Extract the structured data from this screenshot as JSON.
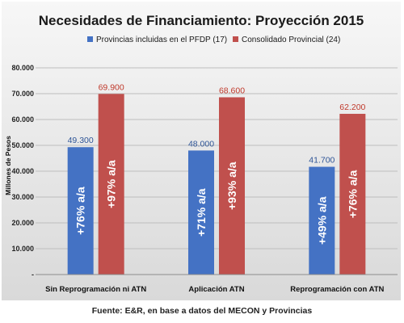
{
  "chart_data": {
    "type": "bar",
    "title": "Necesidades de Financiamiento: Proyección 2015",
    "ylabel": "Millones de Pesos",
    "xlabel": "",
    "ylim": [
      0,
      80000
    ],
    "y_ticks": [
      {
        "value": 0,
        "label": "-"
      },
      {
        "value": 10000,
        "label": "10.000"
      },
      {
        "value": 20000,
        "label": "20.000"
      },
      {
        "value": 30000,
        "label": "30.000"
      },
      {
        "value": 40000,
        "label": "40.000"
      },
      {
        "value": 50000,
        "label": "50.000"
      },
      {
        "value": 60000,
        "label": "60.000"
      },
      {
        "value": 70000,
        "label": "70.000"
      },
      {
        "value": 80000,
        "label": "80.000"
      }
    ],
    "grid": true,
    "legend_position": "top",
    "categories": [
      "Sin Reprogramación ni ATN",
      "Aplicación ATN",
      "Reprogramación con ATN"
    ],
    "series": [
      {
        "name": "Provincias incluidas en el PFDP (17)",
        "color": "#4472C4",
        "values": [
          49300,
          48000,
          41700
        ],
        "value_labels": [
          "49.300",
          "48.000",
          "41.700"
        ],
        "bar_annotations": [
          "+76% a/a",
          "+71% a/a",
          "+49% a/a"
        ]
      },
      {
        "name": "Consolidado Provincial (24)",
        "color": "#C0504D",
        "values": [
          69900,
          68600,
          62200
        ],
        "value_labels": [
          "69.900",
          "68.600",
          "62.200"
        ],
        "bar_annotations": [
          "+97% a/a",
          "+93% a/a",
          "+76% a/a"
        ]
      }
    ]
  },
  "source": "Fuente: E&R, en base a datos del MECON y Provincias"
}
